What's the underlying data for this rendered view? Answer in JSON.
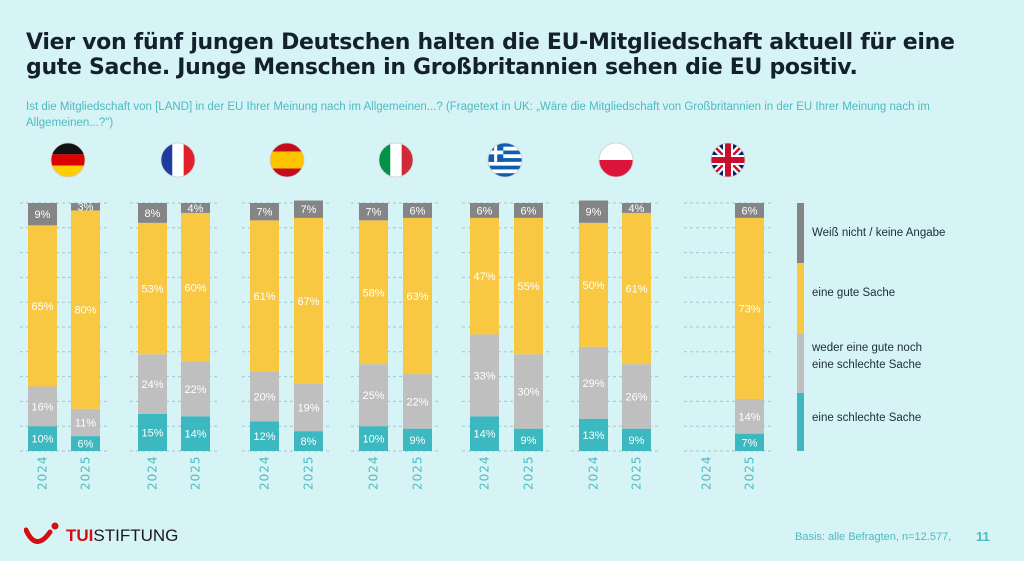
{
  "header": {
    "title": "Vier von fünf jungen Deutschen halten die EU-Mitgliedschaft aktuell für eine gute Sache. Junge Menschen in Großbritannien sehen die EU positiv.",
    "subtitle": "Ist die Mitgliedschaft von [LAND] in der EU Ihrer Meinung nach im Allgemeinen...? (Fragetext in UK: „Wäre die Mitgliedschaft von Großbritannien in der EU Ihrer Meinung nach im Allgemeinen...?\")"
  },
  "colors": {
    "background": "#d6f3f5",
    "schlecht": "#3cb8c0",
    "weder": "#bfbfbf",
    "gut": "#f8c842",
    "weiss_nicht": "#858585",
    "accent": "#4cbcc2"
  },
  "chart_data": {
    "type": "bar",
    "stacked": true,
    "ylim": [
      0,
      100
    ],
    "grid": true,
    "legend_placement": "right",
    "stack_order_bottom_to_top": [
      "eine schlechte Sache",
      "weder eine gute noch eine schlechte Sache",
      "eine gute Sache",
      "Weiß nicht / keine Angabe"
    ],
    "legend": [
      "Weiß nicht / keine Angabe",
      "eine gute Sache",
      "weder eine gute noch eine schlechte Sache",
      "eine schlechte Sache"
    ],
    "groups": [
      {
        "flag": "germany-flag",
        "bars": [
          {
            "year": "2024",
            "values": [
              10,
              16,
              65,
              9
            ]
          },
          {
            "year": "2025",
            "values": [
              6,
              11,
              80,
              3
            ]
          }
        ]
      },
      {
        "flag": "france-flag",
        "bars": [
          {
            "year": "2024",
            "values": [
              15,
              24,
              53,
              8
            ]
          },
          {
            "year": "2025",
            "values": [
              14,
              22,
              60,
              4
            ]
          }
        ]
      },
      {
        "flag": "spain-flag",
        "bars": [
          {
            "year": "2024",
            "values": [
              12,
              20,
              61,
              7
            ]
          },
          {
            "year": "2025",
            "values": [
              8,
              19,
              67,
              7
            ]
          }
        ]
      },
      {
        "flag": "italy-flag",
        "bars": [
          {
            "year": "2024",
            "values": [
              10,
              25,
              58,
              7
            ]
          },
          {
            "year": "2025",
            "values": [
              9,
              22,
              63,
              6
            ]
          }
        ]
      },
      {
        "flag": "greece-flag",
        "bars": [
          {
            "year": "2024",
            "values": [
              14,
              33,
              47,
              6
            ]
          },
          {
            "year": "2025",
            "values": [
              9,
              30,
              55,
              6
            ]
          }
        ]
      },
      {
        "flag": "poland-flag",
        "bars": [
          {
            "year": "2024",
            "values": [
              13,
              29,
              50,
              9
            ]
          },
          {
            "year": "2025",
            "values": [
              9,
              26,
              61,
              4
            ]
          }
        ]
      },
      {
        "flag": "uk-flag",
        "bars": [
          {
            "year": "2024",
            "values": null
          },
          {
            "year": "2025",
            "values": [
              7,
              14,
              73,
              6
            ]
          }
        ]
      }
    ]
  },
  "footer": {
    "logo_tui": "TUI",
    "logo_stiftung": "STIFTUNG",
    "basis": "Basis: alle Befragten, n=12.577,",
    "page": "11"
  }
}
